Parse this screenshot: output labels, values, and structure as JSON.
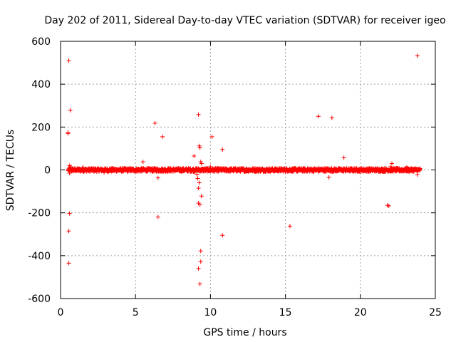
{
  "chart_data": {
    "type": "scatter",
    "title": "Day 202 of 2011, Sidereal Day-to-day VTEC variation (SDTVAR) for receiver igeo",
    "xlabel": "GPS time / hours",
    "ylabel": "SDTVAR / TECUs",
    "xlim": [
      0,
      25
    ],
    "ylim": [
      -600,
      600
    ],
    "xticks": [
      0,
      5,
      10,
      15,
      20,
      25
    ],
    "yticks": [
      -600,
      -400,
      -200,
      0,
      200,
      400,
      600
    ],
    "xtick_labels": [
      "0",
      "5",
      "10",
      "15",
      "20",
      "25"
    ],
    "ytick_labels": [
      "-600",
      "-400",
      "-200",
      "0",
      "200",
      "400",
      "600"
    ],
    "grid": true,
    "marker": "+",
    "color": "#ff0000",
    "dense_band": {
      "x_range": [
        0.5,
        24.0
      ],
      "y_range": [
        -8,
        8
      ]
    },
    "outliers": [
      {
        "x": 0.55,
        "y": 510
      },
      {
        "x": 0.5,
        "y": 175
      },
      {
        "x": 0.5,
        "y": 170
      },
      {
        "x": 0.65,
        "y": 278
      },
      {
        "x": 0.6,
        "y": 20
      },
      {
        "x": 0.7,
        "y": 15
      },
      {
        "x": 0.6,
        "y": -15
      },
      {
        "x": 0.6,
        "y": -203
      },
      {
        "x": 0.55,
        "y": -285
      },
      {
        "x": 0.55,
        "y": -435
      },
      {
        "x": 1.5,
        "y": 12
      },
      {
        "x": 2.9,
        "y": -12
      },
      {
        "x": 5.5,
        "y": 38
      },
      {
        "x": 6.3,
        "y": 218
      },
      {
        "x": 6.8,
        "y": 155
      },
      {
        "x": 6.5,
        "y": -37
      },
      {
        "x": 6.5,
        "y": -220
      },
      {
        "x": 9.2,
        "y": 258
      },
      {
        "x": 9.25,
        "y": 112
      },
      {
        "x": 9.3,
        "y": 103
      },
      {
        "x": 8.9,
        "y": 65
      },
      {
        "x": 9.35,
        "y": 38
      },
      {
        "x": 9.4,
        "y": 30
      },
      {
        "x": 9.1,
        "y": -20
      },
      {
        "x": 9.15,
        "y": -40
      },
      {
        "x": 9.25,
        "y": -60
      },
      {
        "x": 9.2,
        "y": -85
      },
      {
        "x": 9.4,
        "y": -122
      },
      {
        "x": 9.2,
        "y": -155
      },
      {
        "x": 9.3,
        "y": -162
      },
      {
        "x": 9.35,
        "y": -378
      },
      {
        "x": 9.35,
        "y": -428
      },
      {
        "x": 9.2,
        "y": -460
      },
      {
        "x": 9.3,
        "y": -532
      },
      {
        "x": 10.0,
        "y": 15
      },
      {
        "x": 10.1,
        "y": 155
      },
      {
        "x": 10.8,
        "y": 95
      },
      {
        "x": 10.8,
        "y": -305
      },
      {
        "x": 15.3,
        "y": -262
      },
      {
        "x": 17.2,
        "y": 250
      },
      {
        "x": 18.1,
        "y": 243
      },
      {
        "x": 17.9,
        "y": -35
      },
      {
        "x": 18.9,
        "y": 57
      },
      {
        "x": 21.8,
        "y": -165
      },
      {
        "x": 21.9,
        "y": -168
      },
      {
        "x": 22.1,
        "y": 30
      },
      {
        "x": 22.0,
        "y": 15
      },
      {
        "x": 23.1,
        "y": 12
      },
      {
        "x": 23.8,
        "y": 533
      },
      {
        "x": 23.8,
        "y": -22
      }
    ]
  }
}
